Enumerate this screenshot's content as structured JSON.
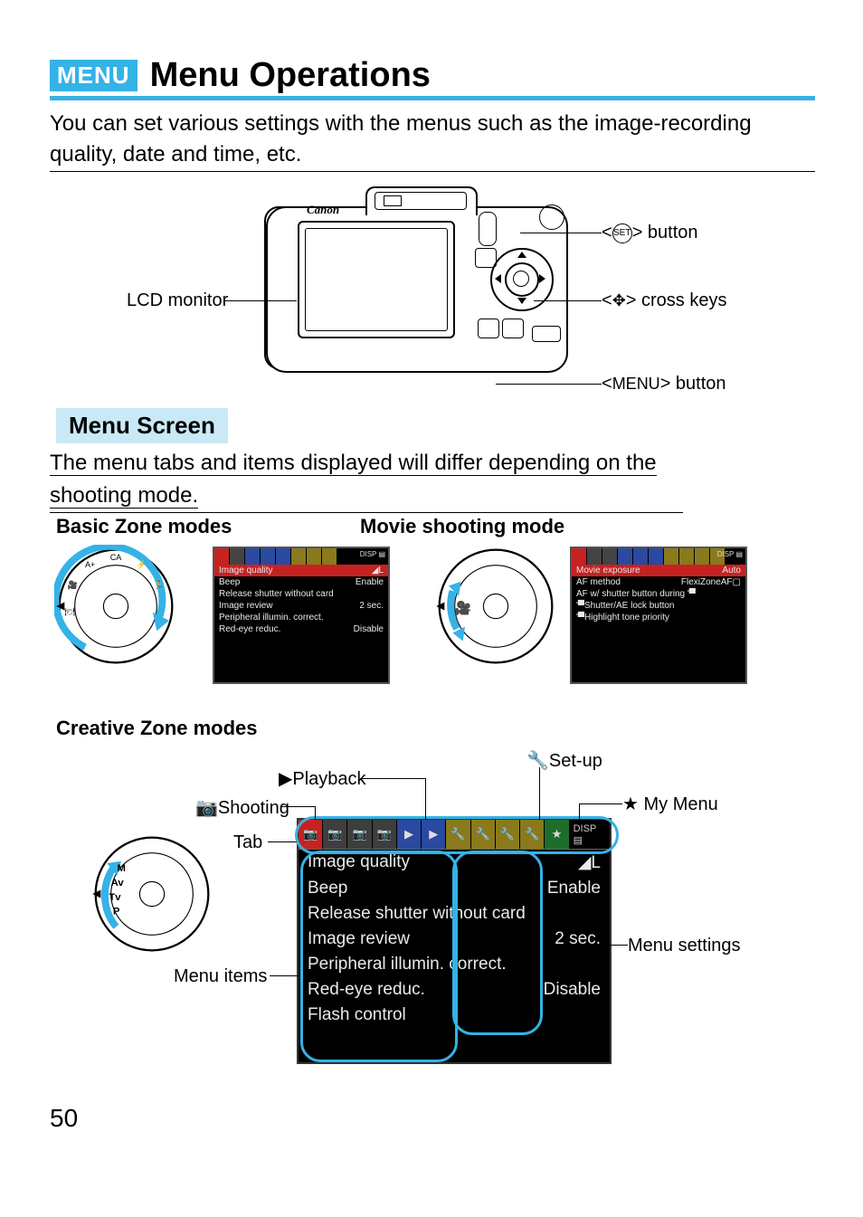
{
  "badge": "MENU",
  "title": "Menu Operations",
  "intro": "You can set various settings with the menus such as the image-recording quality, date and time, etc.",
  "camera": {
    "brand": "Canon",
    "lcd_label": "LCD monitor",
    "set_label_prefix": "<",
    "set_label_suffix": "> button",
    "cross_label": "> cross keys",
    "menu_btn": "<MENU> button",
    "menu_word": "MENU"
  },
  "menu_screen_heading": "Menu Screen",
  "menu_screen_text": "The menu tabs and items displayed will differ depending on the shooting mode.",
  "basic_zone_heading": "Basic Zone modes",
  "movie_heading": "Movie shooting mode",
  "creative_heading": "Creative Zone modes",
  "mini_basic": {
    "rows": [
      {
        "l": "Image quality",
        "r": "◢L",
        "hl": true
      },
      {
        "l": "Beep",
        "r": "Enable"
      },
      {
        "l": "Release shutter without card",
        "r": ""
      },
      {
        "l": "Image review",
        "r": "2 sec."
      },
      {
        "l": "Peripheral illumin. correct.",
        "r": ""
      },
      {
        "l": "Red-eye reduc.",
        "r": "Disable"
      }
    ],
    "corner": "DISP ▤"
  },
  "mini_movie": {
    "rows": [
      {
        "l": "Movie exposure",
        "r": "Auto",
        "hl": true
      },
      {
        "l": "AF method",
        "r": "FlexiZoneAF▢"
      },
      {
        "l": "AF w/ shutter button during '▀",
        "r": ""
      },
      {
        "l": "'▀Shutter/AE lock button",
        "r": ""
      },
      {
        "l": "'▀Highlight tone priority",
        "r": ""
      }
    ],
    "corner": "DISP ▤"
  },
  "big": {
    "rows": [
      {
        "l": "Image quality",
        "r": "◢L"
      },
      {
        "l": "Beep",
        "r": "Enable"
      },
      {
        "l": "Release shutter without card",
        "r": ""
      },
      {
        "l": "Image review",
        "r": "2 sec."
      },
      {
        "l": "Peripheral illumin. correct.",
        "r": ""
      },
      {
        "l": "Red-eye reduc.",
        "r": "Disable"
      },
      {
        "l": "Flash control",
        "r": ""
      }
    ],
    "disp": "DISP ▤"
  },
  "creative_labels": {
    "setup": "Set-up",
    "playback": "Playback",
    "shooting": "Shooting",
    "mymenu": "My Menu",
    "tab": "Tab",
    "menu_items": "Menu items",
    "menu_settings": "Menu settings"
  },
  "page_number": "50",
  "colors": {
    "accent": "#35b2e6",
    "light": "#c9e9f6",
    "tab_red": "#c62222",
    "tab_blue": "#2a49a0",
    "tab_yel": "#8a7a1c"
  }
}
